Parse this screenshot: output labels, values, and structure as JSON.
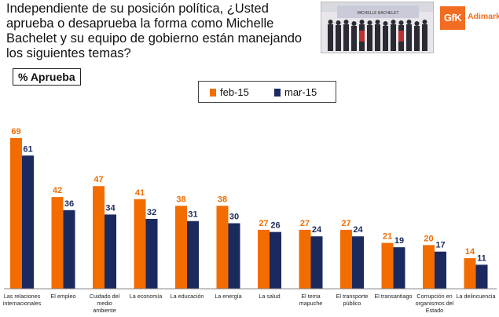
{
  "header": {
    "question": "Independiente de su posición política, ¿Usted aprueba o desaprueba la forma como Michelle Bachelet y su equipo de gobierno están manejando los siguientes temas?",
    "photo_banner": "MICHELLE BACHELET",
    "logo_mark": "GfK",
    "logo_brand": "Adimark"
  },
  "metric_label": "% Aprueba",
  "colors": {
    "feb": "#f26c00",
    "mar": "#1b2a5e"
  },
  "chart_data": {
    "type": "bar",
    "title": "",
    "xlabel": "",
    "ylabel": "",
    "ylim": [
      0,
      75
    ],
    "grid": false,
    "legend": "top-center",
    "categories": [
      "Las relaciones internacionales",
      "El empleo",
      "Cuidado del medio ambiente",
      "La economía",
      "La educación",
      "La energía",
      "La salud",
      "El tema mapuche",
      "El transporte público",
      "El transantiago",
      "Corrupción en organismos del Estado",
      "La delincuencia"
    ],
    "category_lines": [
      [
        "Las relaciones",
        "internacionales"
      ],
      [
        "El empleo"
      ],
      [
        "Cuidado del",
        "medio",
        "ambiente"
      ],
      [
        "La economía"
      ],
      [
        "La educación"
      ],
      [
        "La energía"
      ],
      [
        "La salud"
      ],
      [
        "El tema",
        "mapuche"
      ],
      [
        "El transporte",
        "público"
      ],
      [
        "El transantiago"
      ],
      [
        "Corrupción en",
        "organismos del",
        "Estado"
      ],
      [
        "La delincuencia"
      ]
    ],
    "series": [
      {
        "name": "feb-15",
        "values": [
          69,
          42,
          47,
          41,
          38,
          38,
          27,
          27,
          27,
          21,
          20,
          14
        ]
      },
      {
        "name": "mar-15",
        "values": [
          61,
          36,
          34,
          32,
          31,
          30,
          26,
          24,
          24,
          19,
          17,
          11
        ]
      }
    ]
  }
}
